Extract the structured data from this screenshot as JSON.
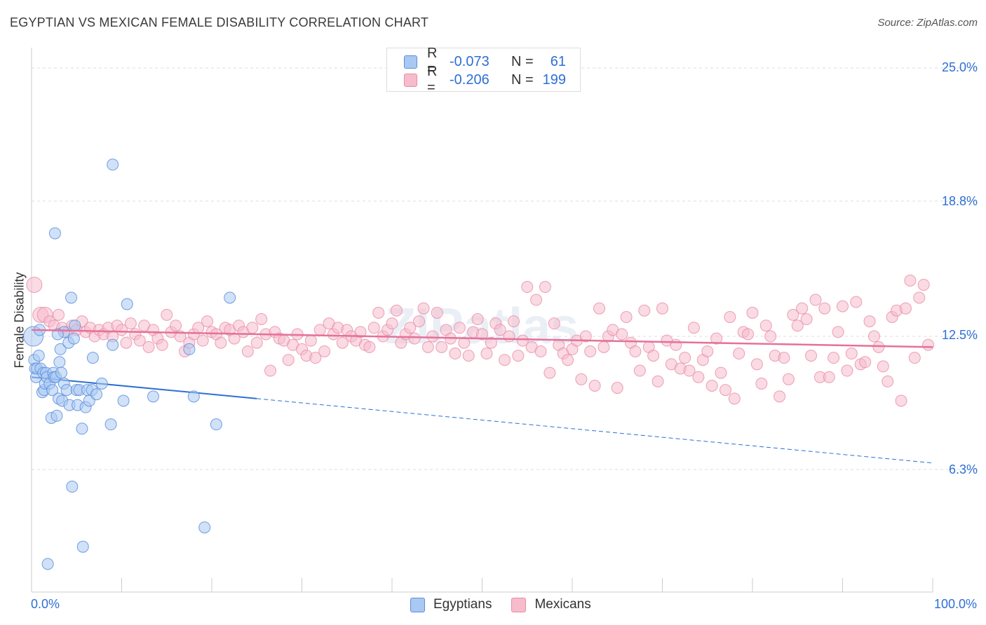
{
  "title": "EGYPTIAN VS MEXICAN FEMALE DISABILITY CORRELATION CHART",
  "source": "Source: ZipAtlas.com",
  "watermark": "ZIPatlas",
  "legend_top": [
    {
      "r_label": "R =",
      "r_value": "-0.073",
      "n_label": "N =",
      "n_value": "61"
    },
    {
      "r_label": "R =",
      "r_value": "-0.206",
      "n_label": "N =",
      "n_value": "199"
    }
  ],
  "legend_bottom": [
    "Egyptians",
    "Mexicans"
  ],
  "y_tick_labels": [
    "25.0%",
    "18.8%",
    "12.5%",
    "6.3%"
  ],
  "x_tick_labels": [
    "0.0%",
    "100.0%"
  ],
  "y_axis_title": "Female Disability",
  "colors": {
    "egyptians_fill": "#a9c8f2",
    "egyptians_stroke": "#5b8fdb",
    "egyptians_line": "#2e6fd4",
    "mexicans_fill": "#f6bccc",
    "mexicans_stroke": "#e98aa6",
    "mexicans_line": "#e5719a",
    "tick_label": "#2e6fd4",
    "grid": "#dddddd"
  },
  "chart_data": {
    "type": "scatter",
    "title": "EGYPTIAN VS MEXICAN FEMALE DISABILITY CORRELATION CHART",
    "xlabel": "",
    "ylabel": "Female Disability",
    "xlim": [
      0,
      100
    ],
    "ylim": [
      0,
      25
    ],
    "y_ticks": [
      6.3,
      12.5,
      18.8,
      25.0
    ],
    "grid": true,
    "legend_placement": "top-center",
    "series": [
      {
        "name": "Egyptians",
        "r": -0.073,
        "n": 61,
        "trend": {
          "x0": 0,
          "y0": 10.6,
          "x_solid_end": 25,
          "y_solid_end": 9.6,
          "x1": 100,
          "y1": 6.6
        },
        "points": [
          [
            0.2,
            12.5
          ],
          [
            0.3,
            11.4
          ],
          [
            0.4,
            11.0
          ],
          [
            0.5,
            10.6
          ],
          [
            0.6,
            11.0
          ],
          [
            0.8,
            11.6
          ],
          [
            1.0,
            11.0
          ],
          [
            1.2,
            9.9
          ],
          [
            1.3,
            10.8
          ],
          [
            1.4,
            10.0
          ],
          [
            1.5,
            10.3
          ],
          [
            1.6,
            10.8
          ],
          [
            1.7,
            10.6
          ],
          [
            2.0,
            10.3
          ],
          [
            2.2,
            8.7
          ],
          [
            2.3,
            10.0
          ],
          [
            2.4,
            10.8
          ],
          [
            2.5,
            10.6
          ],
          [
            2.7,
            10.6
          ],
          [
            2.6,
            17.3
          ],
          [
            2.8,
            8.8
          ],
          [
            3.0,
            9.6
          ],
          [
            3.1,
            11.3
          ],
          [
            3.2,
            11.9
          ],
          [
            3.3,
            10.8
          ],
          [
            3.4,
            9.5
          ],
          [
            3.6,
            10.3
          ],
          [
            3.6,
            12.7
          ],
          [
            3.9,
            10.0
          ],
          [
            4.1,
            12.2
          ],
          [
            4.2,
            9.3
          ],
          [
            4.4,
            14.3
          ],
          [
            4.5,
            5.5
          ],
          [
            4.7,
            12.4
          ],
          [
            5.0,
            10.0
          ],
          [
            5.1,
            9.3
          ],
          [
            5.3,
            10.0
          ],
          [
            5.6,
            8.2
          ],
          [
            5.7,
            2.7
          ],
          [
            6.0,
            9.2
          ],
          [
            6.2,
            10.0
          ],
          [
            6.4,
            9.5
          ],
          [
            6.7,
            10.0
          ],
          [
            7.2,
            9.8
          ],
          [
            7.8,
            10.3
          ],
          [
            8.8,
            8.4
          ],
          [
            9.0,
            20.5
          ],
          [
            9.0,
            12.1
          ],
          [
            10.2,
            9.5
          ],
          [
            10.6,
            14.0
          ],
          [
            13.5,
            9.7
          ],
          [
            17.5,
            11.9
          ],
          [
            18.0,
            9.7
          ],
          [
            19.2,
            3.6
          ],
          [
            20.5,
            8.4
          ],
          [
            22.0,
            14.3
          ],
          [
            1.8,
            1.9
          ],
          [
            0.9,
            12.8
          ],
          [
            2.9,
            12.6
          ],
          [
            4.8,
            13.0
          ],
          [
            6.8,
            11.5
          ]
        ]
      },
      {
        "name": "Mexicans",
        "r": -0.206,
        "n": 199,
        "trend": {
          "x0": 0,
          "y0": 12.8,
          "x1": 100,
          "y1": 12.0
        },
        "points": [
          [
            0.3,
            14.9
          ],
          [
            1.0,
            13.5
          ],
          [
            1.5,
            13.5
          ],
          [
            2.0,
            13.2
          ],
          [
            2.5,
            13.0
          ],
          [
            3.0,
            13.5
          ],
          [
            3.4,
            12.9
          ],
          [
            4.0,
            12.7
          ],
          [
            4.5,
            13.0
          ],
          [
            5.0,
            12.8
          ],
          [
            5.6,
            13.2
          ],
          [
            6.0,
            12.7
          ],
          [
            6.5,
            12.9
          ],
          [
            7.0,
            12.5
          ],
          [
            7.5,
            12.8
          ],
          [
            8.0,
            12.6
          ],
          [
            8.5,
            12.9
          ],
          [
            9.0,
            12.5
          ],
          [
            9.5,
            13.0
          ],
          [
            10.0,
            12.8
          ],
          [
            10.5,
            12.2
          ],
          [
            11.0,
            13.1
          ],
          [
            11.5,
            12.6
          ],
          [
            12.0,
            12.3
          ],
          [
            12.5,
            13.0
          ],
          [
            13.0,
            12.0
          ],
          [
            13.5,
            12.8
          ],
          [
            14.0,
            12.4
          ],
          [
            14.5,
            12.1
          ],
          [
            15.0,
            13.5
          ],
          [
            15.5,
            12.7
          ],
          [
            16.0,
            13.0
          ],
          [
            16.5,
            12.5
          ],
          [
            17.0,
            11.8
          ],
          [
            17.5,
            12.2
          ],
          [
            18.0,
            12.6
          ],
          [
            18.5,
            12.9
          ],
          [
            19.0,
            12.3
          ],
          [
            19.5,
            13.2
          ],
          [
            20.0,
            12.7
          ],
          [
            20.5,
            12.6
          ],
          [
            21.0,
            12.2
          ],
          [
            21.5,
            12.9
          ],
          [
            22.0,
            12.8
          ],
          [
            22.5,
            12.4
          ],
          [
            23.0,
            13.0
          ],
          [
            23.5,
            12.7
          ],
          [
            24.0,
            11.8
          ],
          [
            24.5,
            12.9
          ],
          [
            25.0,
            12.2
          ],
          [
            25.5,
            13.3
          ],
          [
            26.0,
            12.6
          ],
          [
            26.5,
            10.9
          ],
          [
            27.0,
            12.7
          ],
          [
            27.5,
            12.4
          ],
          [
            28.0,
            12.3
          ],
          [
            28.5,
            11.4
          ],
          [
            29.0,
            12.1
          ],
          [
            29.5,
            12.6
          ],
          [
            30.0,
            11.9
          ],
          [
            30.5,
            11.6
          ],
          [
            31.0,
            12.3
          ],
          [
            31.5,
            11.5
          ],
          [
            32.0,
            12.8
          ],
          [
            32.5,
            11.8
          ],
          [
            33.0,
            13.1
          ],
          [
            33.5,
            12.6
          ],
          [
            34.0,
            12.9
          ],
          [
            34.5,
            12.2
          ],
          [
            35.0,
            12.8
          ],
          [
            35.5,
            12.5
          ],
          [
            36.0,
            12.3
          ],
          [
            36.5,
            12.7
          ],
          [
            37.0,
            12.1
          ],
          [
            37.5,
            12.0
          ],
          [
            38.0,
            12.9
          ],
          [
            38.5,
            13.6
          ],
          [
            39.0,
            12.5
          ],
          [
            39.5,
            12.8
          ],
          [
            40.0,
            13.1
          ],
          [
            40.5,
            13.7
          ],
          [
            41.0,
            12.2
          ],
          [
            41.5,
            12.6
          ],
          [
            42.0,
            12.9
          ],
          [
            42.5,
            12.4
          ],
          [
            43.0,
            13.2
          ],
          [
            43.5,
            13.8
          ],
          [
            44.0,
            12.0
          ],
          [
            44.5,
            12.5
          ],
          [
            45.0,
            13.6
          ],
          [
            45.5,
            12.0
          ],
          [
            46.0,
            12.8
          ],
          [
            46.5,
            12.4
          ],
          [
            47.0,
            11.7
          ],
          [
            47.5,
            12.9
          ],
          [
            48.0,
            12.2
          ],
          [
            48.5,
            11.6
          ],
          [
            49.0,
            12.7
          ],
          [
            49.5,
            13.3
          ],
          [
            50.0,
            12.6
          ],
          [
            50.5,
            11.7
          ],
          [
            51.0,
            12.2
          ],
          [
            51.5,
            13.1
          ],
          [
            52.0,
            12.8
          ],
          [
            52.5,
            11.4
          ],
          [
            53.0,
            12.5
          ],
          [
            53.5,
            13.2
          ],
          [
            54.0,
            11.6
          ],
          [
            54.5,
            12.3
          ],
          [
            55.0,
            14.8
          ],
          [
            55.5,
            12.0
          ],
          [
            56.0,
            14.2
          ],
          [
            56.5,
            11.8
          ],
          [
            57.0,
            14.8
          ],
          [
            57.5,
            10.8
          ],
          [
            58.0,
            13.1
          ],
          [
            58.5,
            12.1
          ],
          [
            59.0,
            11.7
          ],
          [
            59.5,
            11.4
          ],
          [
            60.0,
            11.9
          ],
          [
            60.5,
            12.3
          ],
          [
            61.0,
            10.5
          ],
          [
            61.5,
            12.5
          ],
          [
            62.0,
            11.8
          ],
          [
            62.5,
            10.2
          ],
          [
            63.0,
            13.8
          ],
          [
            63.5,
            12.0
          ],
          [
            64.0,
            12.5
          ],
          [
            64.5,
            12.8
          ],
          [
            65.0,
            10.1
          ],
          [
            65.5,
            12.6
          ],
          [
            66.0,
            13.4
          ],
          [
            66.5,
            12.2
          ],
          [
            67.0,
            11.8
          ],
          [
            67.5,
            10.9
          ],
          [
            68.0,
            13.7
          ],
          [
            68.5,
            12.0
          ],
          [
            69.0,
            11.6
          ],
          [
            69.5,
            10.4
          ],
          [
            70.0,
            13.8
          ],
          [
            70.5,
            12.3
          ],
          [
            71.0,
            11.2
          ],
          [
            71.5,
            12.1
          ],
          [
            72.0,
            11.0
          ],
          [
            72.5,
            11.5
          ],
          [
            73.0,
            10.9
          ],
          [
            73.5,
            12.9
          ],
          [
            74.0,
            10.6
          ],
          [
            74.5,
            11.4
          ],
          [
            75.0,
            11.8
          ],
          [
            75.5,
            10.2
          ],
          [
            76.0,
            12.4
          ],
          [
            76.5,
            10.8
          ],
          [
            77.0,
            10.0
          ],
          [
            77.5,
            13.4
          ],
          [
            78.0,
            9.6
          ],
          [
            78.5,
            11.7
          ],
          [
            79.0,
            12.7
          ],
          [
            79.5,
            12.6
          ],
          [
            80.0,
            13.6
          ],
          [
            80.5,
            11.2
          ],
          [
            81.0,
            10.3
          ],
          [
            81.5,
            13.0
          ],
          [
            82.0,
            12.5
          ],
          [
            82.5,
            11.6
          ],
          [
            83.0,
            9.7
          ],
          [
            83.5,
            11.5
          ],
          [
            84.0,
            10.5
          ],
          [
            84.5,
            13.5
          ],
          [
            85.0,
            13.0
          ],
          [
            85.5,
            13.8
          ],
          [
            86.0,
            13.3
          ],
          [
            86.5,
            11.6
          ],
          [
            87.0,
            14.2
          ],
          [
            87.5,
            10.6
          ],
          [
            88.0,
            13.8
          ],
          [
            88.5,
            10.6
          ],
          [
            89.0,
            11.5
          ],
          [
            89.5,
            12.7
          ],
          [
            90.0,
            13.9
          ],
          [
            90.5,
            10.9
          ],
          [
            91.0,
            11.7
          ],
          [
            91.5,
            14.1
          ],
          [
            92.0,
            11.2
          ],
          [
            92.5,
            11.3
          ],
          [
            93.0,
            13.2
          ],
          [
            93.5,
            12.5
          ],
          [
            94.0,
            12.0
          ],
          [
            94.5,
            11.1
          ],
          [
            95.0,
            10.4
          ],
          [
            95.5,
            13.4
          ],
          [
            96.0,
            13.7
          ],
          [
            96.5,
            9.5
          ],
          [
            97.0,
            13.8
          ],
          [
            97.5,
            15.1
          ],
          [
            98.0,
            11.5
          ],
          [
            98.5,
            14.3
          ],
          [
            99.0,
            14.9
          ],
          [
            99.5,
            12.1
          ]
        ]
      }
    ]
  }
}
